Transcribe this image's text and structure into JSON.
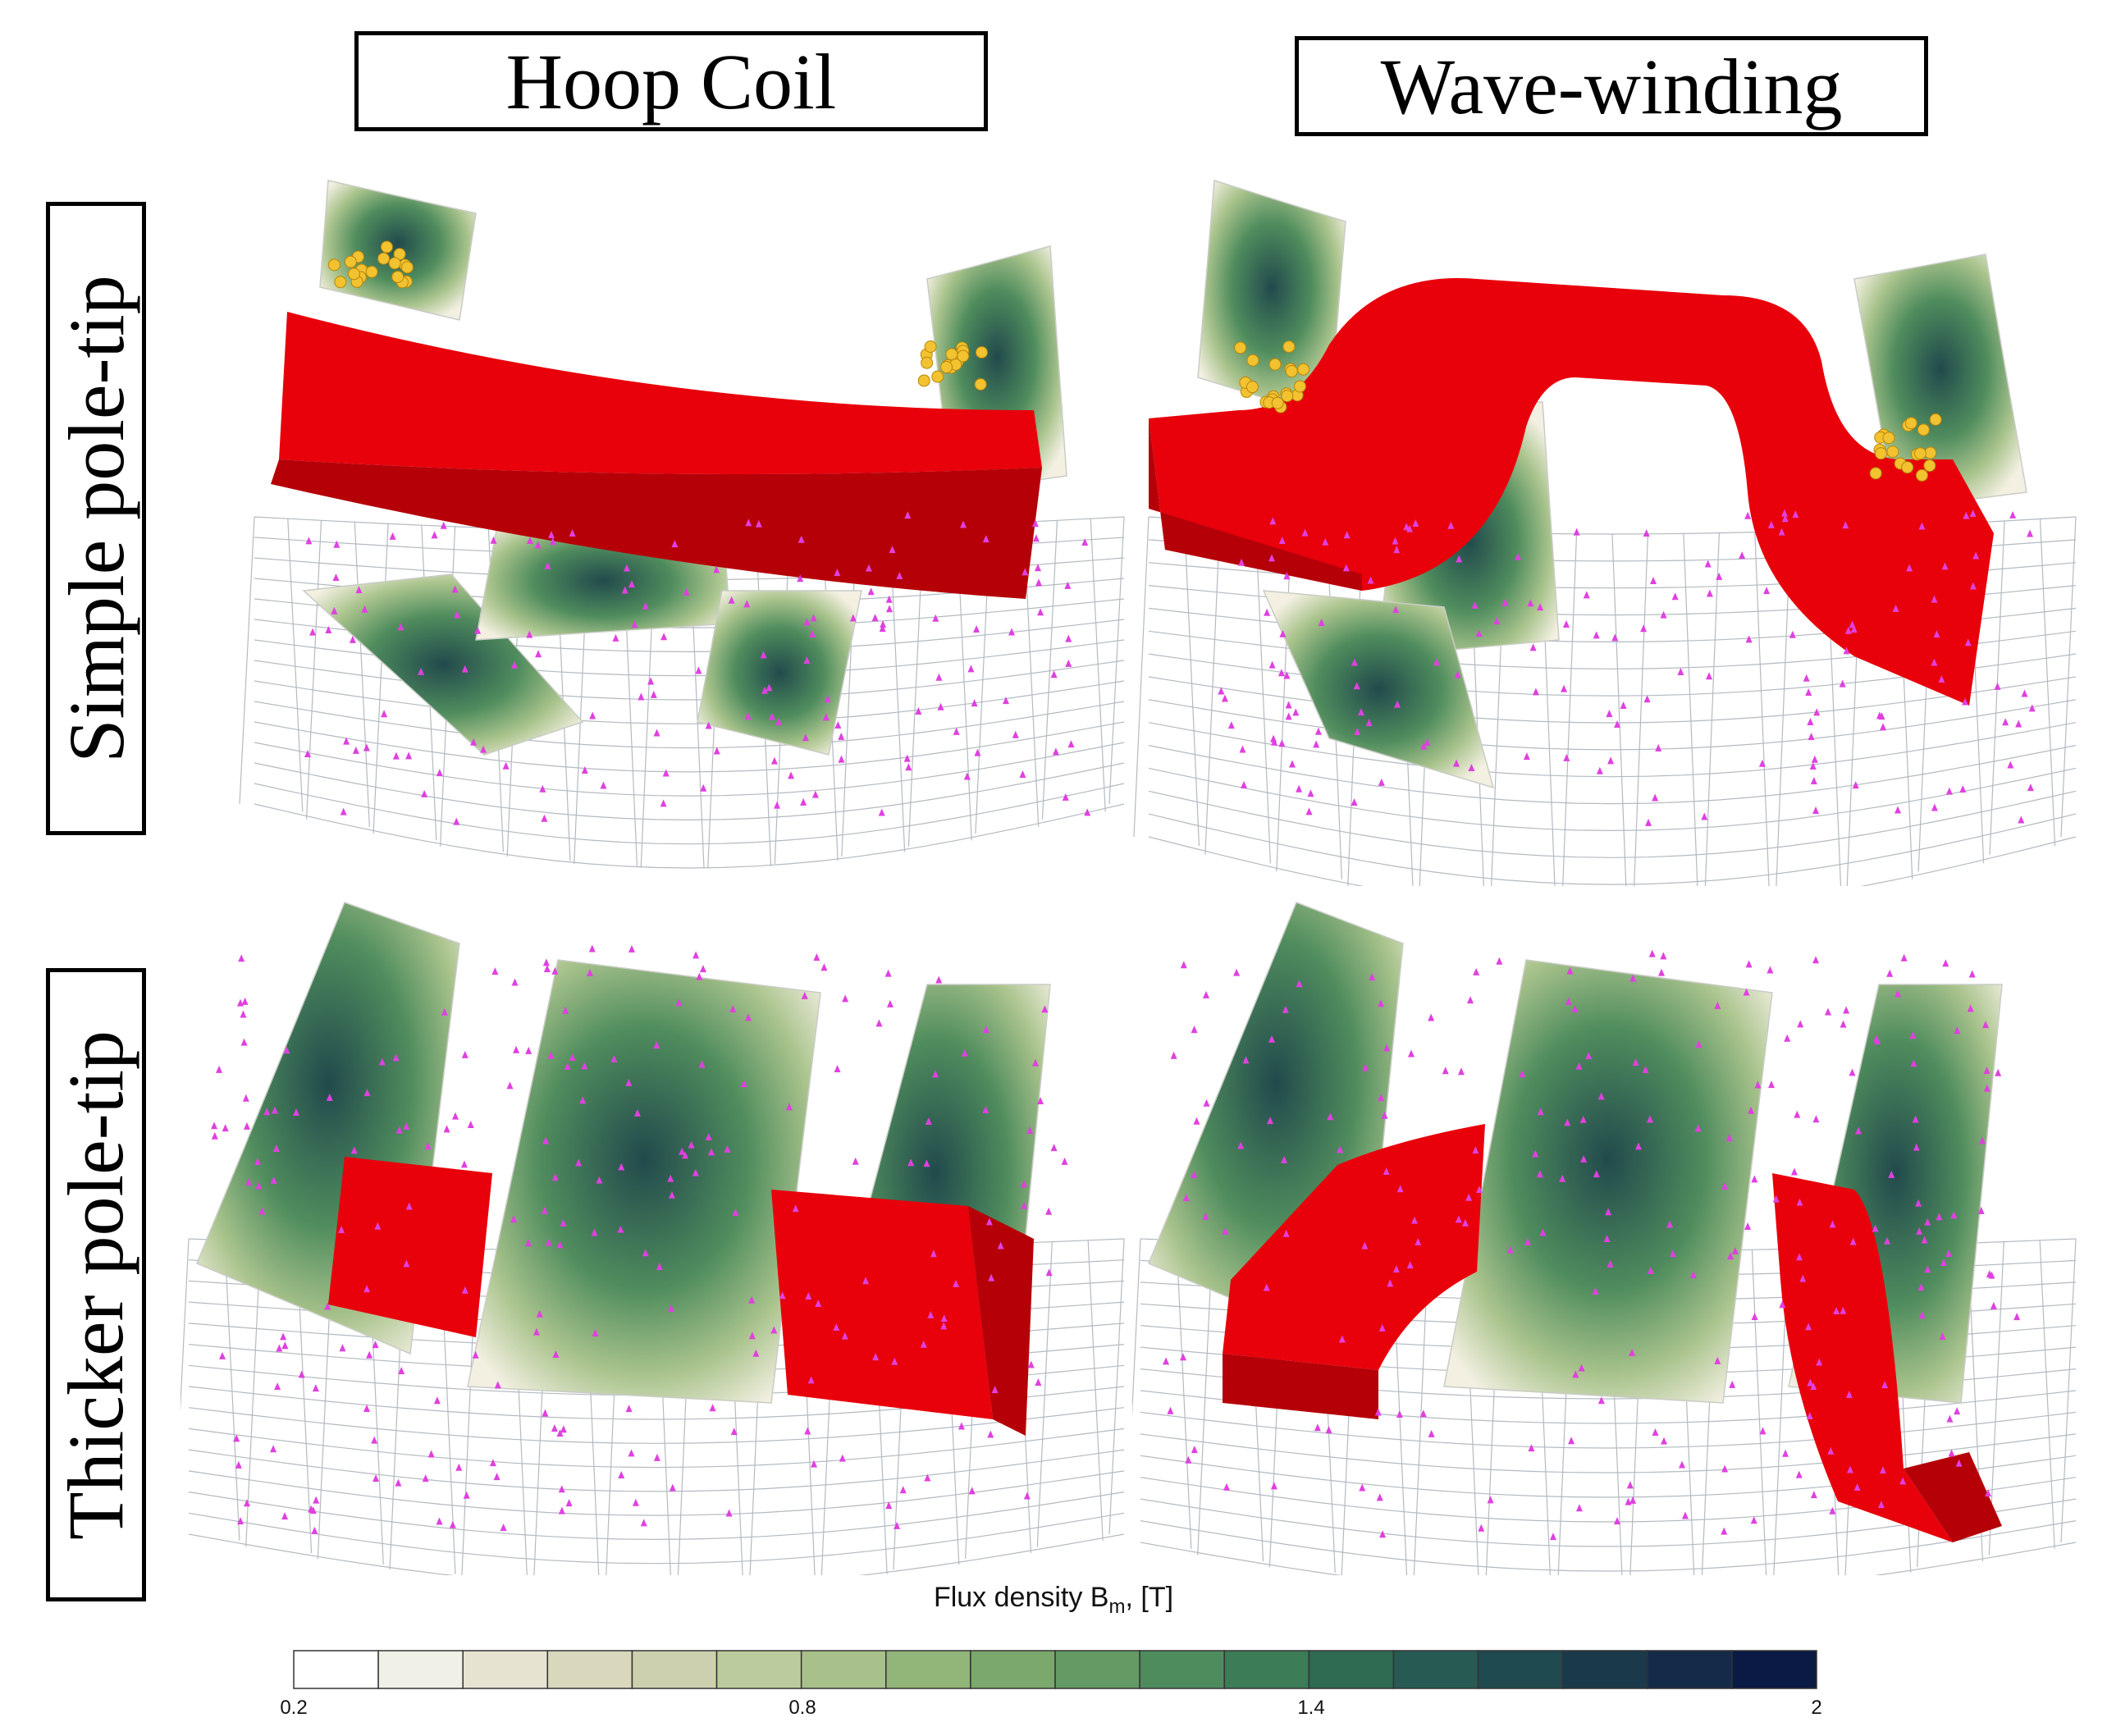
{
  "column_labels": [
    "Hoop Coil",
    "Wave-winding"
  ],
  "row_labels": [
    "Simple pole-tip",
    "Thicker pole-tip"
  ],
  "panels": [
    {
      "row": "Simple pole-tip",
      "column": "Hoop Coil",
      "coil": "hoop"
    },
    {
      "row": "Simple pole-tip",
      "column": "Wave-winding",
      "coil": "wave"
    },
    {
      "row": "Thicker pole-tip",
      "column": "Hoop Coil",
      "coil": "hoop"
    },
    {
      "row": "Thicker pole-tip",
      "column": "Wave-winding",
      "coil": "wave"
    }
  ],
  "colors": {
    "coil": "#e8000b",
    "coil_dark": "#b50008",
    "arrow": "#e040e0",
    "conductor": "#f2c230",
    "mesh": "#9aa4ae"
  },
  "colorbar": {
    "title_main": "Flux density B",
    "title_sub": "m",
    "title_unit": ", [T]",
    "min": 0.2,
    "max": 2,
    "tick_labels": [
      "0.2",
      "0.8",
      "1.4",
      "2"
    ],
    "tick_values": [
      0.2,
      0.8,
      1.4,
      2
    ],
    "segments": 18,
    "colors": [
      "#ffffff",
      "#f1f0e6",
      "#e6e3d1",
      "#d9d8bc",
      "#cdd0ae",
      "#bccb9d",
      "#a8c18b",
      "#92b579",
      "#7ba86c",
      "#649a63",
      "#4f8c5d",
      "#3c7c57",
      "#2f6a53",
      "#265a52",
      "#1f4a4f",
      "#1a3a4c",
      "#132b48",
      "#0a1a44"
    ]
  }
}
